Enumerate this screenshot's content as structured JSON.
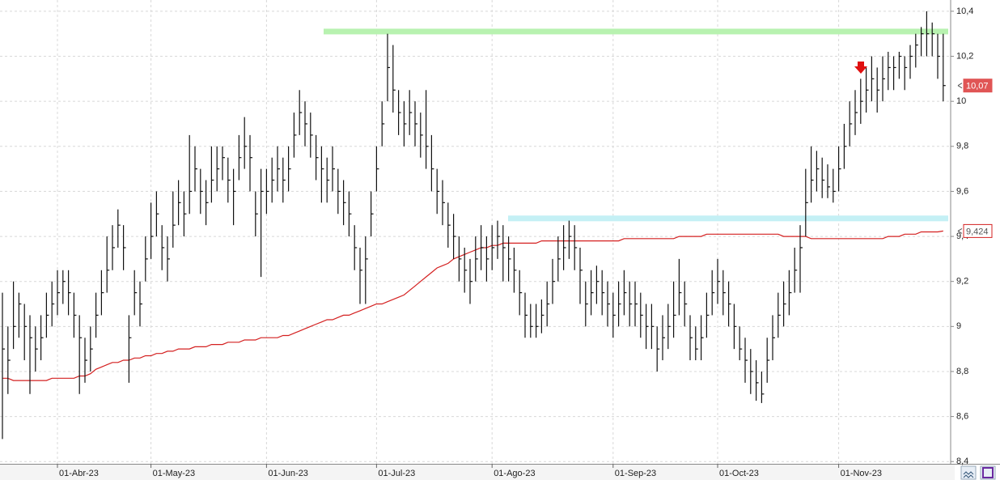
{
  "chart_data": {
    "type": "ohlc",
    "categories": [
      null,
      null,
      null,
      null,
      null,
      null,
      null,
      null,
      null,
      null,
      "01-Abr-23",
      null,
      null,
      null,
      null,
      null,
      null,
      null,
      null,
      null,
      null,
      null,
      null,
      null,
      null,
      null,
      null,
      "01-May-23",
      null,
      null,
      null,
      null,
      null,
      null,
      null,
      null,
      null,
      null,
      null,
      null,
      null,
      null,
      null,
      null,
      null,
      null,
      null,
      null,
      "01-Jun-23",
      null,
      null,
      null,
      null,
      null,
      null,
      null,
      null,
      null,
      null,
      null,
      null,
      null,
      null,
      null,
      null,
      null,
      null,
      null,
      "01-Jul-23",
      null,
      null,
      null,
      null,
      null,
      null,
      null,
      null,
      null,
      null,
      null,
      null,
      null,
      null,
      null,
      null,
      null,
      null,
      null,
      null,
      "01-Ago-23",
      null,
      null,
      null,
      null,
      null,
      null,
      null,
      null,
      null,
      null,
      null,
      null,
      null,
      null,
      null,
      null,
      null,
      null,
      null,
      null,
      null,
      "01-Sep-23",
      null,
      null,
      null,
      null,
      null,
      null,
      null,
      null,
      null,
      null,
      null,
      null,
      null,
      null,
      null,
      null,
      null,
      null,
      "01-Oct-23",
      null,
      null,
      null,
      null,
      null,
      null,
      null,
      null,
      null,
      null,
      null,
      null,
      null,
      null,
      null,
      null,
      null,
      null,
      null,
      null,
      null,
      "01-Nov-23",
      null,
      null,
      null,
      null,
      null,
      null,
      null,
      null,
      null,
      null,
      null,
      null,
      null,
      null,
      null,
      null,
      null,
      null,
      null
    ],
    "high": [
      9.15,
      9.0,
      9.2,
      9.15,
      9.1,
      9.05,
      9.0,
      9.05,
      9.15,
      9.2,
      9.25,
      9.25,
      9.25,
      9.15,
      9.05,
      8.95,
      9.0,
      9.15,
      9.25,
      9.4,
      9.45,
      9.52,
      9.45,
      9.05,
      9.25,
      9.2,
      9.4,
      9.55,
      9.6,
      9.45,
      9.4,
      9.6,
      9.65,
      9.6,
      9.85,
      9.8,
      9.7,
      9.65,
      9.8,
      9.8,
      9.8,
      9.75,
      9.7,
      9.85,
      9.93,
      9.85,
      9.6,
      9.7,
      9.7,
      9.75,
      9.8,
      9.75,
      9.8,
      9.95,
      10.05,
      10.0,
      9.95,
      9.85,
      9.8,
      9.75,
      9.8,
      9.7,
      9.65,
      9.6,
      9.45,
      9.35,
      9.4,
      9.6,
      9.8,
      10.0,
      10.3,
      10.25,
      10.05,
      10.0,
      10.05,
      10.0,
      9.95,
      10.05,
      9.85,
      9.7,
      9.65,
      9.55,
      9.5,
      9.4,
      9.35,
      9.3,
      9.4,
      9.45,
      9.4,
      9.45,
      9.47,
      9.45,
      9.4,
      9.35,
      9.25,
      9.15,
      9.1,
      9.1,
      9.12,
      9.2,
      9.3,
      9.4,
      9.45,
      9.47,
      9.45,
      9.35,
      9.2,
      9.25,
      9.27,
      9.25,
      9.2,
      9.15,
      9.2,
      9.25,
      9.2,
      9.2,
      9.15,
      9.1,
      9.1,
      9.0,
      9.05,
      9.1,
      9.2,
      9.3,
      9.2,
      9.05,
      9.0,
      9.05,
      9.15,
      9.25,
      9.3,
      9.25,
      9.2,
      9.1,
      9.0,
      8.95,
      8.9,
      8.85,
      8.8,
      8.95,
      9.05,
      9.15,
      9.2,
      9.25,
      9.35,
      9.45,
      9.7,
      9.8,
      9.78,
      9.75,
      9.72,
      9.7,
      9.8,
      9.9,
      10.0,
      10.05,
      10.1,
      10.15,
      10.2,
      10.15,
      10.2,
      10.22,
      10.2,
      10.22,
      10.2,
      10.25,
      10.3,
      10.33,
      10.4,
      10.35,
      10.3,
      10.3
    ],
    "low": [
      8.5,
      8.7,
      8.9,
      8.95,
      8.85,
      8.7,
      8.8,
      8.85,
      8.95,
      9.0,
      9.05,
      9.1,
      9.05,
      8.95,
      8.7,
      8.75,
      8.8,
      8.95,
      9.05,
      9.15,
      9.25,
      9.35,
      9.25,
      8.75,
      9.05,
      9.0,
      9.2,
      9.3,
      9.4,
      9.25,
      9.2,
      9.35,
      9.45,
      9.4,
      9.5,
      9.6,
      9.5,
      9.45,
      9.55,
      9.6,
      9.65,
      9.55,
      9.45,
      9.65,
      9.7,
      9.6,
      9.4,
      9.22,
      9.5,
      9.55,
      9.6,
      9.55,
      9.6,
      9.75,
      9.85,
      9.8,
      9.75,
      9.65,
      9.55,
      9.55,
      9.6,
      9.5,
      9.45,
      9.4,
      9.25,
      9.1,
      9.1,
      9.4,
      9.6,
      9.8,
      10.0,
      9.95,
      9.85,
      9.8,
      9.85,
      9.8,
      9.75,
      9.7,
      9.6,
      9.5,
      9.45,
      9.35,
      9.3,
      9.2,
      9.15,
      9.1,
      9.2,
      9.25,
      9.2,
      9.25,
      9.3,
      9.2,
      9.2,
      9.15,
      9.05,
      8.95,
      8.95,
      8.95,
      8.97,
      9.0,
      9.1,
      9.2,
      9.25,
      9.3,
      9.25,
      9.1,
      9.0,
      9.05,
      9.1,
      9.05,
      9.0,
      8.95,
      9.0,
      9.05,
      9.0,
      9.0,
      8.95,
      8.9,
      8.9,
      8.8,
      8.85,
      8.9,
      8.95,
      9.05,
      9.0,
      8.85,
      8.85,
      8.85,
      8.95,
      9.05,
      9.1,
      9.05,
      9.0,
      8.9,
      8.85,
      8.75,
      8.7,
      8.67,
      8.66,
      8.75,
      8.85,
      8.95,
      9.0,
      9.05,
      9.15,
      9.15,
      9.4,
      9.55,
      9.6,
      9.57,
      9.57,
      9.55,
      9.6,
      9.7,
      9.8,
      9.85,
      9.9,
      9.95,
      10.0,
      9.95,
      10.0,
      10.05,
      10.05,
      10.1,
      10.05,
      10.1,
      10.15,
      10.2,
      10.2,
      10.2,
      10.1,
      10.0
    ],
    "close": [
      8.9,
      8.85,
      9.0,
      9.1,
      9.0,
      8.95,
      8.9,
      8.95,
      9.05,
      9.1,
      9.15,
      9.2,
      9.15,
      9.05,
      8.95,
      8.85,
      8.9,
      9.05,
      9.15,
      9.25,
      9.35,
      9.45,
      9.35,
      8.95,
      9.15,
      9.1,
      9.3,
      9.4,
      9.5,
      9.35,
      9.3,
      9.45,
      9.55,
      9.5,
      9.6,
      9.7,
      9.6,
      9.55,
      9.65,
      9.7,
      9.75,
      9.65,
      9.6,
      9.75,
      9.8,
      9.75,
      9.5,
      9.6,
      9.6,
      9.65,
      9.7,
      9.65,
      9.7,
      9.85,
      9.95,
      9.9,
      9.85,
      9.75,
      9.7,
      9.65,
      9.7,
      9.6,
      9.55,
      9.5,
      9.35,
      9.25,
      9.3,
      9.5,
      9.7,
      9.9,
      10.15,
      10.05,
      9.95,
      9.9,
      9.95,
      9.9,
      9.85,
      9.8,
      9.7,
      9.6,
      9.55,
      9.45,
      9.4,
      9.3,
      9.25,
      9.2,
      9.3,
      9.35,
      9.3,
      9.35,
      9.4,
      9.35,
      9.3,
      9.25,
      9.15,
      9.05,
      9.0,
      9.0,
      9.05,
      9.1,
      9.2,
      9.3,
      9.35,
      9.4,
      9.35,
      9.25,
      9.1,
      9.15,
      9.2,
      9.15,
      9.1,
      9.05,
      9.1,
      9.15,
      9.1,
      9.1,
      9.05,
      9.0,
      9.0,
      8.9,
      8.95,
      9.0,
      9.05,
      9.15,
      9.1,
      8.95,
      8.9,
      8.95,
      9.05,
      9.15,
      9.2,
      9.15,
      9.1,
      9.0,
      8.9,
      8.85,
      8.8,
      8.75,
      8.7,
      8.85,
      8.95,
      9.05,
      9.1,
      9.15,
      9.25,
      9.35,
      9.55,
      9.65,
      9.7,
      9.65,
      9.62,
      9.6,
      9.7,
      9.8,
      9.9,
      9.95,
      10.0,
      10.05,
      10.1,
      10.05,
      10.1,
      10.15,
      10.15,
      10.2,
      10.15,
      10.2,
      10.25,
      10.3,
      10.3,
      10.3,
      10.2,
      10.07
    ],
    "color": "#111111",
    "moving_average": {
      "color": "#d42020",
      "values": [
        8.77,
        8.77,
        8.76,
        8.76,
        8.76,
        8.76,
        8.76,
        8.76,
        8.76,
        8.77,
        8.77,
        8.77,
        8.77,
        8.77,
        8.78,
        8.78,
        8.79,
        8.81,
        8.82,
        8.83,
        8.84,
        8.84,
        8.85,
        8.85,
        8.86,
        8.86,
        8.87,
        8.87,
        8.88,
        8.88,
        8.89,
        8.89,
        8.9,
        8.9,
        8.9,
        8.91,
        8.91,
        8.91,
        8.92,
        8.92,
        8.92,
        8.93,
        8.93,
        8.93,
        8.94,
        8.94,
        8.94,
        8.95,
        8.95,
        8.95,
        8.95,
        8.96,
        8.96,
        8.97,
        8.98,
        8.99,
        9.0,
        9.01,
        9.02,
        9.03,
        9.03,
        9.04,
        9.05,
        9.05,
        9.06,
        9.07,
        9.08,
        9.09,
        9.1,
        9.1,
        9.11,
        9.12,
        9.13,
        9.14,
        9.16,
        9.18,
        9.2,
        9.22,
        9.24,
        9.26,
        9.27,
        9.28,
        9.3,
        9.31,
        9.32,
        9.33,
        9.34,
        9.35,
        9.35,
        9.36,
        9.36,
        9.37,
        9.37,
        9.37,
        9.37,
        9.37,
        9.37,
        9.37,
        9.38,
        9.38,
        9.38,
        9.38,
        9.38,
        9.38,
        9.38,
        9.38,
        9.38,
        9.38,
        9.38,
        9.38,
        9.38,
        9.38,
        9.38,
        9.39,
        9.39,
        9.39,
        9.39,
        9.39,
        9.39,
        9.39,
        9.39,
        9.39,
        9.39,
        9.4,
        9.4,
        9.4,
        9.4,
        9.4,
        9.41,
        9.41,
        9.41,
        9.41,
        9.41,
        9.41,
        9.41,
        9.41,
        9.41,
        9.41,
        9.41,
        9.41,
        9.41,
        9.41,
        9.4,
        9.4,
        9.4,
        9.4,
        9.4,
        9.39,
        9.39,
        9.39,
        9.39,
        9.39,
        9.39,
        9.39,
        9.39,
        9.39,
        9.39,
        9.39,
        9.39,
        9.39,
        9.39,
        9.4,
        9.4,
        9.4,
        9.41,
        9.41,
        9.41,
        9.42,
        9.42,
        9.42,
        9.42,
        9.424
      ]
    },
    "levels": [
      {
        "value": 10.31,
        "color": "#b8f2b0"
      },
      {
        "value": 9.48,
        "color": "#c4f0f5"
      }
    ],
    "price_flags": [
      {
        "value": 10.07,
        "label": "10,07",
        "color": "#e05555"
      },
      {
        "value": 9.424,
        "label": "9,424",
        "color": "#ffffff"
      }
    ],
    "ylim": [
      8.39,
      10.45
    ],
    "yticks": [
      {
        "value": 10.4,
        "label": "10,4"
      },
      {
        "value": 10.2,
        "label": "10,2"
      },
      10,
      {
        "value": 9.8,
        "label": "9,8"
      },
      {
        "value": 9.6,
        "label": "9,6"
      },
      {
        "value": 9.4,
        "label": "9,4"
      },
      {
        "value": 9.2,
        "label": "9,2"
      },
      9,
      {
        "value": 8.8,
        "label": "8,8"
      },
      {
        "value": 8.6,
        "label": "8,6"
      },
      {
        "value": 8.4,
        "label": "8,4"
      }
    ],
    "grid": true
  }
}
